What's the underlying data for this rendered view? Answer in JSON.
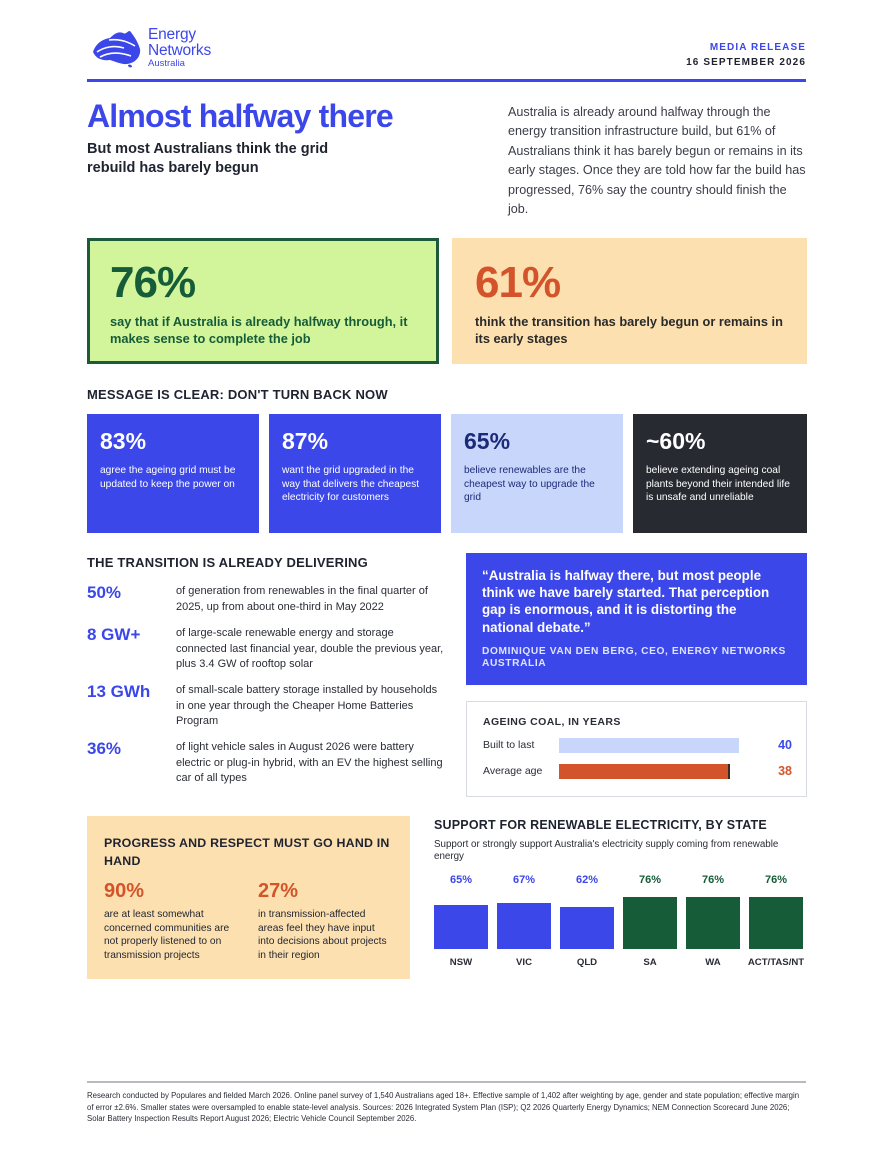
{
  "header": {
    "logo": {
      "line1": "Energy",
      "line2": "Networks",
      "line3": "Australia",
      "icon": "australia-map-icon"
    },
    "release_label": "MEDIA RELEASE",
    "release_date": "16 SEPTEMBER 2026"
  },
  "colors": {
    "brand_blue": "#3b47e8",
    "green": "#165c38",
    "lime": "#d2f59c",
    "peach": "#fde0b0",
    "orange": "#d3542a",
    "light_blue": "#c9d6fb",
    "charcoal": "#272a30"
  },
  "hero": {
    "title": "Almost halfway there",
    "subtitle": "But most Australians think the grid rebuild has barely begun",
    "intro": "Australia is already around halfway through the energy transition infrastructure build, but 61% of Australians think it has barely begun or remains in its early stages. Once they are told how far the build has progressed, 76% say the country should finish the job."
  },
  "headline_stats": [
    {
      "value": "76%",
      "text": "say that if Australia is already halfway through, it makes sense to complete the job"
    },
    {
      "value": "61%",
      "text": "think the transition has barely begun or remains in its early stages"
    }
  ],
  "message_section": {
    "heading": "MESSAGE IS CLEAR: DON'T TURN BACK NOW",
    "stats": [
      {
        "value": "83%",
        "text": "agree the ageing grid must be updated to keep the power on"
      },
      {
        "value": "87%",
        "text": "want the grid upgraded in the way that delivers the cheapest electricity for customers"
      },
      {
        "value": "65%",
        "text": "believe renewables are the cheapest way to upgrade the grid"
      },
      {
        "value": "~60%",
        "text": "believe extending ageing coal plants beyond their intended life is unsafe and unreliable"
      }
    ]
  },
  "delivering_section": {
    "heading": "THE TRANSITION IS ALREADY DELIVERING",
    "items": [
      {
        "value": "50%",
        "text": "of generation from renewables in the final quarter of 2025, up from about one-third in May 2022"
      },
      {
        "value": "8 GW+",
        "text": "of large-scale renewable energy and storage connected last financial year, double the previous year, plus 3.4 GW of rooftop solar"
      },
      {
        "value": "13 GWh",
        "text": "of small-scale battery storage installed by households in one year through the Cheaper Home Batteries Program"
      },
      {
        "value": "36%",
        "text": "of light vehicle sales in August 2026 were battery electric or plug-in hybrid, with an EV the highest selling car of all types"
      }
    ]
  },
  "quote": {
    "text": "“Australia is halfway there, but most people think we have barely started. That perception gap is enormous, and it is distorting the national debate.”",
    "attribution": "DOMINIQUE VAN DEN BERG, CEO, ENERGY NETWORKS AUSTRALIA"
  },
  "coal_chart": {
    "title": "AGEING COAL, IN YEARS",
    "max": 40,
    "rows": [
      {
        "label": "Built to last",
        "value": 40,
        "value_text": "40",
        "color": "#c9d6fb",
        "value_color": "#3b47e8"
      },
      {
        "label": "Average age",
        "value": 38,
        "value_text": "38",
        "color": "#d3542a",
        "value_color": "#d3542a"
      }
    ]
  },
  "respect_section": {
    "heading": "PROGRESS AND RESPECT MUST GO HAND IN HAND",
    "stats": [
      {
        "value": "90%",
        "text": "are at least somewhat concerned communities are not properly listened to on transmission projects"
      },
      {
        "value": "27%",
        "text": "in transmission-affected areas feel they have input into decisions about projects in their region"
      }
    ]
  },
  "chart_data": {
    "type": "bar",
    "title": "SUPPORT FOR RENEWABLE ELECTRICITY, BY STATE",
    "subtitle": "Support or strongly support Australia's electricity supply coming from renewable energy",
    "categories": [
      "NSW",
      "VIC",
      "QLD",
      "SA",
      "WA",
      "ACT/TAS/NT"
    ],
    "values": [
      65,
      67,
      62,
      76,
      76,
      76
    ],
    "value_labels": [
      "65%",
      "67%",
      "62%",
      "76%",
      "76%",
      "76%"
    ],
    "bar_colors": [
      "#3b47e8",
      "#3b47e8",
      "#3b47e8",
      "#165c38",
      "#165c38",
      "#165c38"
    ],
    "grid": false,
    "legend": "none"
  },
  "footer": {
    "note": "Research conducted by Populares and fielded March 2026. Online panel survey of 1,540 Australians aged 18+. Effective sample of 1,402 after weighting by age, gender and state population; effective margin of error ±2.6%. Smaller states were oversampled to enable state-level analysis. Sources: 2026 Integrated System Plan (ISP); Q2 2026 Quarterly Energy Dynamics; NEM Connection Scorecard June 2026; Solar Battery Inspection Results Report August 2026; Electric Vehicle Council September 2026."
  }
}
